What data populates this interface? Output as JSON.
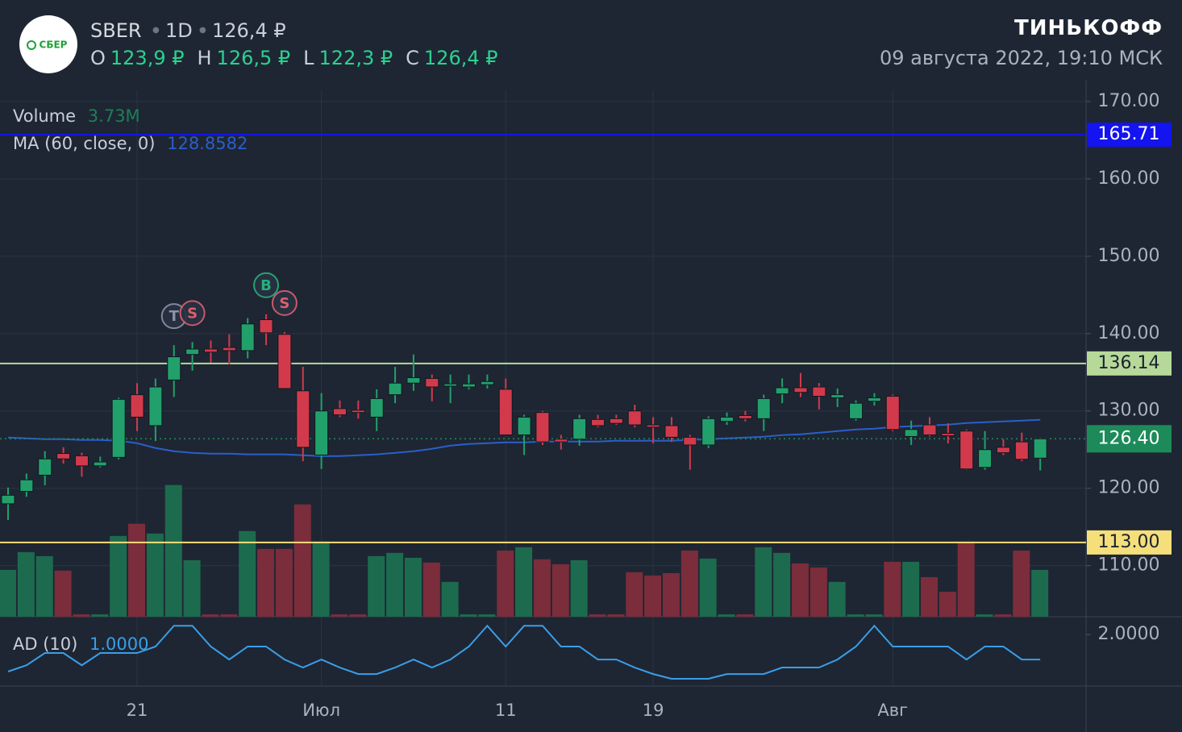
{
  "header": {
    "logo": "СБЕР",
    "ticker": "SBER",
    "interval": "1D",
    "last": "126,4 ₽",
    "brand": "ТИНЬКОФФ",
    "datetime": "09 августа 2022, 19:10 МСК",
    "ohlc": [
      {
        "label": "O",
        "value": "123,9 ₽"
      },
      {
        "label": "H",
        "value": "126,5 ₽"
      },
      {
        "label": "L",
        "value": "122,3 ₽"
      },
      {
        "label": "C",
        "value": "126,4 ₽"
      }
    ]
  },
  "chart_data": {
    "type": "candlestick",
    "up_color": "#22a06b",
    "down_color": "#d23a4c",
    "grid": true,
    "categories": [
      null,
      null,
      null,
      null,
      null,
      null,
      null,
      "21",
      null,
      null,
      null,
      null,
      null,
      null,
      null,
      null,
      null,
      "Июл",
      null,
      null,
      null,
      null,
      null,
      null,
      null,
      null,
      null,
      "11",
      null,
      null,
      null,
      null,
      null,
      null,
      null,
      "19",
      null,
      null,
      null,
      null,
      null,
      null,
      null,
      null,
      null,
      null,
      null,
      null,
      "Авг",
      null,
      null,
      null,
      null,
      null,
      null,
      null,
      null
    ],
    "open": [
      118.0,
      119.6,
      121.7,
      124.5,
      124.2,
      122.9,
      124.0,
      132.1,
      128.1,
      134.0,
      137.3,
      138.0,
      138.2,
      137.8,
      141.8,
      139.9,
      132.6,
      124.3,
      130.3,
      130.1,
      129.2,
      132.1,
      133.6,
      134.2,
      133.2,
      133.1,
      133.4,
      132.8,
      126.9,
      129.8,
      126.35,
      126.35,
      128.9,
      129.0,
      130.0,
      128.2,
      128.1,
      126.6,
      125.6,
      128.65,
      129.4,
      129.0,
      132.2,
      133.0,
      133.1,
      131.7,
      129.0,
      131.25,
      131.9,
      126.7,
      128.2,
      127.1,
      127.4,
      122.7,
      125.3,
      126.0,
      123.9
    ],
    "high": [
      120.1,
      121.9,
      124.8,
      125.3,
      124.6,
      124.1,
      131.7,
      133.6,
      134.2,
      138.5,
      138.9,
      139.1,
      139.9,
      142.0,
      142.5,
      140.2,
      135.7,
      132.3,
      131.35,
      131.35,
      132.8,
      135.7,
      137.3,
      134.7,
      134.7,
      134.7,
      134.7,
      134.2,
      129.5,
      130.0,
      126.9,
      129.5,
      129.5,
      129.5,
      130.8,
      129.2,
      129.2,
      126.9,
      129.3,
      129.8,
      130.0,
      132.1,
      134.2,
      134.9,
      133.6,
      132.9,
      131.35,
      132.3,
      132.1,
      128.75,
      129.2,
      128.4,
      127.6,
      127.4,
      126.35,
      127.2,
      126.5
    ],
    "low": [
      115.9,
      118.9,
      120.4,
      123.2,
      121.5,
      122.7,
      123.75,
      127.4,
      126.1,
      131.8,
      135.2,
      136.25,
      136.0,
      136.8,
      138.5,
      132.9,
      123.5,
      122.5,
      129.2,
      129.0,
      127.4,
      131.0,
      132.6,
      131.25,
      131.0,
      132.8,
      132.9,
      126.9,
      124.3,
      125.6,
      125.0,
      125.5,
      127.9,
      128.2,
      127.9,
      125.8,
      126.0,
      122.4,
      125.2,
      128.2,
      128.65,
      127.4,
      131.0,
      131.8,
      130.2,
      130.5,
      128.75,
      130.7,
      127.4,
      125.6,
      126.7,
      125.8,
      122.4,
      122.4,
      124.3,
      123.5,
      122.3
    ],
    "close": [
      119.1,
      121.1,
      123.8,
      123.8,
      122.9,
      123.4,
      131.5,
      129.2,
      133.1,
      137.0,
      138.0,
      137.6,
      137.8,
      141.25,
      140.1,
      132.9,
      125.3,
      130.0,
      129.5,
      129.8,
      131.6,
      133.6,
      134.3,
      133.1,
      133.5,
      133.5,
      133.8,
      126.9,
      129.2,
      126.0,
      126.0,
      129.0,
      128.1,
      128.4,
      128.2,
      127.9,
      126.6,
      125.6,
      129.0,
      129.2,
      129.0,
      131.6,
      133.0,
      132.4,
      131.9,
      132.1,
      131.0,
      131.7,
      127.6,
      127.6,
      126.9,
      126.8,
      122.5,
      125.0,
      124.6,
      123.75,
      126.4
    ],
    "ylim": [
      103.4,
      172.7
    ],
    "yticks": [
      {
        "value": 110,
        "label": "110.00"
      },
      {
        "value": 120,
        "label": "120.00"
      },
      {
        "value": 130,
        "label": "130.00"
      },
      {
        "value": 140,
        "label": "140.00"
      },
      {
        "value": 150,
        "label": "150.00"
      },
      {
        "value": 160,
        "label": "160.00"
      },
      {
        "value": 170,
        "label": "170.00"
      }
    ],
    "levels": [
      {
        "value": 165.71,
        "color": "#1414f0",
        "text_color": "#ffffff"
      },
      {
        "value": 136.14,
        "color": "#b6d99a",
        "text_color": "#1b2230"
      },
      {
        "value": 113,
        "label": "113.00",
        "color": "#f4df7a",
        "text_color": "#1b2230"
      }
    ],
    "last_price": {
      "value": 126.4,
      "label": "126.40",
      "color": "#1d8a5a"
    },
    "markers": [
      {
        "text": "T",
        "index": 9,
        "color": "#8a94a6"
      },
      {
        "text": "S",
        "index": 10,
        "color": "#d9606e"
      },
      {
        "text": "B",
        "index": 14,
        "color": "#26b07a"
      },
      {
        "text": "S",
        "index": 15,
        "color": "#d9606e"
      }
    ],
    "volume": {
      "name": "Volume",
      "value_label": "3.73M",
      "vlim": [
        0,
        12
      ],
      "values": [
        3.73,
        5.14,
        4.82,
        3.67,
        0.19,
        0.19,
        6.43,
        7.4,
        6.62,
        10.48,
        4.5,
        0.19,
        0.19,
        6.82,
        5.4,
        5.4,
        8.94,
        5.98,
        0.19,
        0.19,
        4.82,
        5.08,
        4.69,
        4.31,
        2.77,
        0.19,
        0.19,
        5.27,
        5.53,
        4.57,
        4.18,
        4.5,
        0.19,
        0.19,
        3.54,
        3.28,
        3.47,
        5.27,
        4.63,
        0.19,
        0.19,
        5.53,
        5.08,
        4.24,
        3.92,
        2.77,
        0.19,
        0.19,
        4.37,
        4.37,
        3.15,
        1.99,
        5.98,
        0.19,
        0.19,
        5.27,
        3.73
      ]
    },
    "ma": {
      "name": "MA (60, close, 0)",
      "color": "#2a5fc9",
      "values": [
        126.56,
        126.46,
        126.35,
        126.35,
        126.25,
        126.25,
        126.15,
        125.83,
        125.21,
        124.79,
        124.58,
        124.48,
        124.48,
        124.38,
        124.38,
        124.38,
        124.27,
        124.17,
        124.17,
        124.27,
        124.38,
        124.58,
        124.79,
        125.1,
        125.52,
        125.73,
        125.83,
        125.94,
        125.94,
        126.04,
        126.04,
        126.04,
        126.04,
        126.15,
        126.15,
        126.15,
        126.15,
        126.25,
        126.35,
        126.46,
        126.56,
        126.67,
        126.88,
        126.98,
        127.19,
        127.4,
        127.6,
        127.71,
        127.92,
        128.02,
        128.13,
        128.23,
        128.44,
        128.54,
        128.65,
        128.75,
        128.8582
      ]
    },
    "ad": {
      "name": "AD (10)",
      "color": "#3a9ee8",
      "value_label": "1.0000",
      "ylim": [
        -0.06,
        2.68
      ],
      "yticks": [
        {
          "value": 2,
          "label": "2.0000"
        }
      ],
      "values": [
        0.52,
        0.77,
        1.26,
        1.26,
        0.77,
        1.26,
        1.26,
        1.26,
        1.52,
        2.35,
        2.35,
        1.52,
        1.0,
        1.52,
        1.52,
        1.0,
        0.68,
        1.0,
        0.68,
        0.42,
        0.42,
        0.68,
        1.0,
        0.68,
        1.0,
        1.52,
        2.35,
        1.52,
        2.35,
        2.35,
        1.52,
        1.52,
        1.0,
        1.0,
        0.68,
        0.42,
        0.23,
        0.23,
        0.23,
        0.42,
        0.42,
        0.42,
        0.68,
        0.68,
        0.68,
        1.0,
        1.52,
        2.35,
        1.52,
        1.52,
        1.52,
        1.52,
        1.0,
        1.52,
        1.52,
        1.0,
        1.0
      ]
    }
  }
}
